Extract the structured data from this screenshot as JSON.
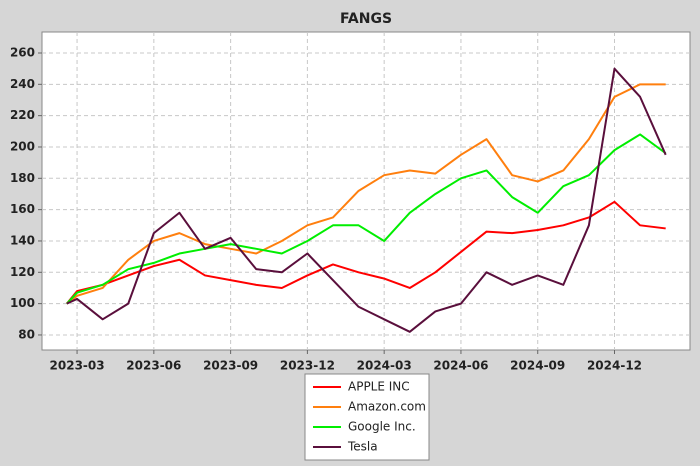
{
  "chart_data": {
    "type": "line",
    "title": "FANGS",
    "x": [
      -0.4,
      0,
      1,
      2,
      3,
      4,
      5,
      6,
      7,
      8,
      9,
      10,
      11,
      12,
      13,
      14,
      15,
      16,
      17,
      18,
      19,
      20,
      21,
      22,
      23
    ],
    "series": [
      {
        "name": "APPLE INC",
        "color": "#ff0000",
        "values": [
          100,
          108,
          112,
          118,
          124,
          128,
          118,
          115,
          112,
          110,
          118,
          125,
          120,
          116,
          110,
          120,
          133,
          146,
          145,
          147,
          150,
          155,
          165,
          150,
          148
        ]
      },
      {
        "name": "Amazon.com",
        "color": "#ff7f0e",
        "values": [
          100,
          105,
          110,
          128,
          140,
          145,
          138,
          135,
          132,
          140,
          150,
          155,
          172,
          182,
          185,
          183,
          195,
          205,
          182,
          178,
          185,
          205,
          232,
          240,
          240
        ]
      },
      {
        "name": "Google Inc.",
        "color": "#00ee00",
        "values": [
          100,
          107,
          112,
          122,
          126,
          132,
          135,
          138,
          135,
          132,
          140,
          150,
          150,
          140,
          158,
          170,
          180,
          185,
          168,
          158,
          175,
          182,
          198,
          208,
          196
        ]
      },
      {
        "name": "Tesla",
        "color": "#5a0f3c",
        "values": [
          100,
          103,
          90,
          100,
          145,
          158,
          135,
          142,
          122,
          120,
          132,
          115,
          98,
          90,
          82,
          95,
          100,
          120,
          112,
          118,
          112,
          150,
          250,
          232,
          195
        ]
      }
    ],
    "xlim": [
      -1.37,
      23.95
    ],
    "xticks": [
      {
        "value": 0,
        "label": "2023-03"
      },
      {
        "value": 3,
        "label": "2023-06"
      },
      {
        "value": 6,
        "label": "2023-09"
      },
      {
        "value": 9,
        "label": "2023-12"
      },
      {
        "value": 12,
        "label": "2024-03"
      },
      {
        "value": 15,
        "label": "2024-06"
      },
      {
        "value": 18,
        "label": "2024-09"
      },
      {
        "value": 21,
        "label": "2024-12"
      }
    ],
    "ylim": [
      70.4,
      273.4
    ],
    "yticks": [
      80,
      100,
      120,
      140,
      160,
      180,
      200,
      220,
      240,
      260
    ],
    "grid": true,
    "legend": "bottom"
  }
}
